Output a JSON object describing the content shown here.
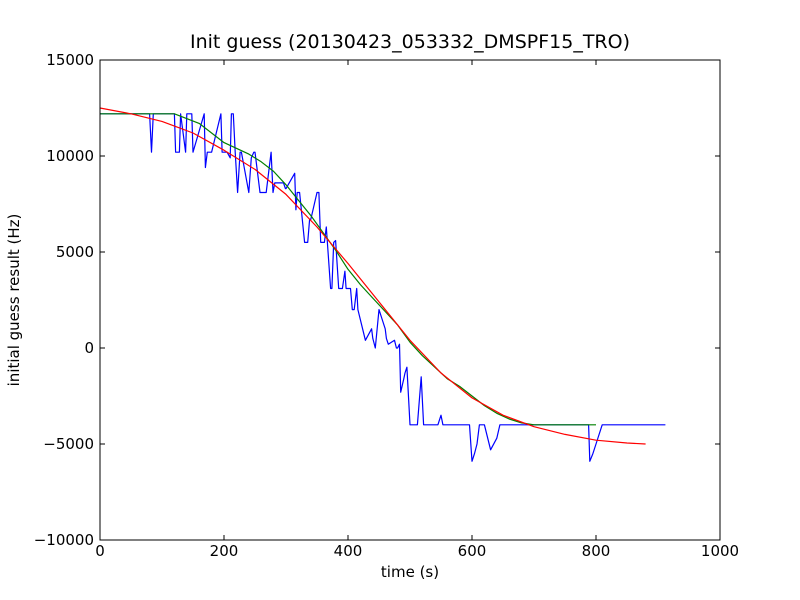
{
  "chart_data": {
    "type": "line",
    "title": "Init guess (20130423_053332_DMSPF15_TRO)",
    "xlabel": "time (s)",
    "ylabel": "initial guess result (Hz)",
    "xlim": [
      0,
      1000
    ],
    "ylim": [
      -10000,
      15000
    ],
    "x_ticks": [
      0,
      200,
      400,
      600,
      800,
      1000
    ],
    "y_ticks": [
      -10000,
      -5000,
      0,
      5000,
      10000,
      15000
    ],
    "grid": false,
    "legend": "none",
    "series": [
      {
        "color": "#0000ff",
        "x": [
          0,
          80,
          83,
          86,
          120,
          122,
          128,
          130,
          138,
          140,
          148,
          150,
          168,
          170,
          173,
          180,
          195,
          197,
          205,
          210,
          212,
          215,
          218,
          222,
          226,
          228,
          240,
          244,
          248,
          250,
          258,
          262,
          268,
          276,
          279,
          282,
          296,
          299,
          300,
          314,
          316,
          318,
          320,
          322,
          330,
          335,
          338,
          340,
          350,
          353,
          356,
          362,
          365,
          372,
          374,
          377,
          380,
          385,
          388,
          391,
          395,
          397,
          400,
          404,
          407,
          410,
          414,
          416,
          428,
          438,
          440,
          444,
          450,
          460,
          462,
          465,
          475,
          478,
          480,
          483,
          485,
          490,
          492,
          495,
          500,
          503,
          508,
          512,
          518,
          522,
          526,
          530,
          535,
          540,
          545,
          550,
          553,
          556,
          560,
          564,
          568,
          572,
          576,
          580,
          584,
          588,
          596,
          600,
          604,
          608,
          612,
          620,
          630,
          640,
          645,
          650,
          660,
          670,
          680,
          690,
          695,
          700,
          705,
          710,
          715,
          720,
          730,
          740,
          760,
          780,
          788,
          790,
          795,
          800,
          810,
          820,
          826,
          830,
          840,
          850,
          860,
          870,
          872,
          876,
          880,
          890,
          900,
          910,
          912
        ],
        "y": [
          12200,
          12200,
          10200,
          12200,
          12200,
          10200,
          10200,
          12200,
          10200,
          12200,
          12200,
          10200,
          12200,
          9400,
          10200,
          10200,
          12200,
          10200,
          10200,
          9900,
          12200,
          12200,
          10200,
          8100,
          10200,
          10200,
          8100,
          9900,
          10200,
          10200,
          8100,
          8100,
          8100,
          10200,
          8100,
          8600,
          8600,
          8300,
          8300,
          9100,
          7200,
          8100,
          8100,
          8100,
          5500,
          5500,
          6700,
          6700,
          8100,
          8100,
          5500,
          5500,
          6300,
          3100,
          3100,
          5500,
          5600,
          3100,
          3100,
          3100,
          4000,
          3100,
          3100,
          3100,
          2000,
          2000,
          3100,
          2000,
          400,
          1000,
          500,
          0,
          2000,
          1000,
          500,
          200,
          400,
          0,
          0,
          200,
          -2300,
          -1600,
          -1300,
          -1000,
          -4000,
          -4000,
          -4000,
          -4000,
          -1500,
          -4000,
          -4000,
          -4000,
          -4000,
          -4000,
          -4000,
          -3500,
          -4000,
          -4000,
          -4000,
          -4000,
          -4000,
          -4000,
          -4000,
          -4000,
          -4000,
          -4000,
          -4000,
          -5900,
          -5500,
          -5000,
          -4000,
          -4000,
          -5300,
          -4700,
          -4000,
          -4000,
          -4000,
          -4000,
          -4000,
          -4000,
          -4000,
          -4000,
          -4000,
          -4000,
          -4000,
          -4000,
          -4000,
          -4000,
          -4000,
          -4000,
          -4000,
          -5900,
          -5500,
          -5000,
          -4000,
          -4000,
          -4000,
          -4000,
          -4000,
          -4000,
          -4000,
          -4000,
          -4000,
          -4000,
          -4000,
          -4000,
          -4000,
          -4000,
          -4000
        ]
      },
      {
        "color": "#008000",
        "x": [
          0,
          100,
          120,
          160,
          200,
          240,
          260,
          280,
          300,
          320,
          340,
          360,
          380,
          400,
          420,
          440,
          460,
          480,
          500,
          520,
          540,
          560,
          580,
          600,
          620,
          640,
          660,
          680,
          700,
          720,
          740,
          780,
          800
        ],
        "y": [
          12200,
          12200,
          12200,
          11700,
          10700,
          10100,
          9700,
          9200,
          8500,
          7700,
          6900,
          6000,
          5100,
          4100,
          3300,
          2600,
          1900,
          1200,
          300,
          -400,
          -1000,
          -1600,
          -2000,
          -2500,
          -3000,
          -3400,
          -3700,
          -3900,
          -4000,
          -4000,
          -4000,
          -4000,
          -4000
        ]
      },
      {
        "color": "#ff0000",
        "x": [
          0,
          50,
          100,
          150,
          200,
          250,
          300,
          350,
          400,
          450,
          500,
          550,
          600,
          650,
          700,
          750,
          800,
          850,
          880
        ],
        "y": [
          12500,
          12200,
          11800,
          11200,
          10300,
          9300,
          8000,
          6300,
          4400,
          2400,
          400,
          -1300,
          -2600,
          -3500,
          -4100,
          -4500,
          -4800,
          -4950,
          -5000
        ]
      }
    ]
  }
}
